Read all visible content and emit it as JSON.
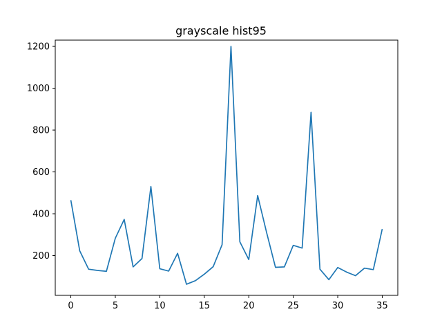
{
  "chart_data": {
    "type": "line",
    "title": "grayscale hist95",
    "xlabel": "",
    "ylabel": "",
    "xlim": [
      -1.75,
      36.75
    ],
    "ylim": [
      10,
      1230
    ],
    "grid": false,
    "legend": "none",
    "x_ticks": [
      0,
      5,
      10,
      15,
      20,
      25,
      30,
      35
    ],
    "y_ticks": [
      200,
      400,
      600,
      800,
      1000,
      1200
    ],
    "line_color": "#1f77b4",
    "series": [
      {
        "x": [
          0,
          1,
          2,
          3,
          4,
          5,
          6,
          7,
          8,
          9,
          10,
          11,
          12,
          13,
          14,
          15,
          16,
          17,
          18,
          19,
          20,
          21,
          22,
          23,
          24,
          25,
          26,
          27,
          28,
          29,
          30,
          31,
          32,
          33,
          34,
          35
        ],
        "values": [
          465,
          223,
          135,
          129,
          125,
          283,
          373,
          146,
          186,
          530,
          137,
          126,
          211,
          63,
          80,
          111,
          147,
          252,
          1200,
          266,
          181,
          487,
          311,
          144,
          146,
          249,
          236,
          885,
          135,
          85,
          143,
          121,
          104,
          140,
          133,
          327
        ]
      }
    ]
  }
}
